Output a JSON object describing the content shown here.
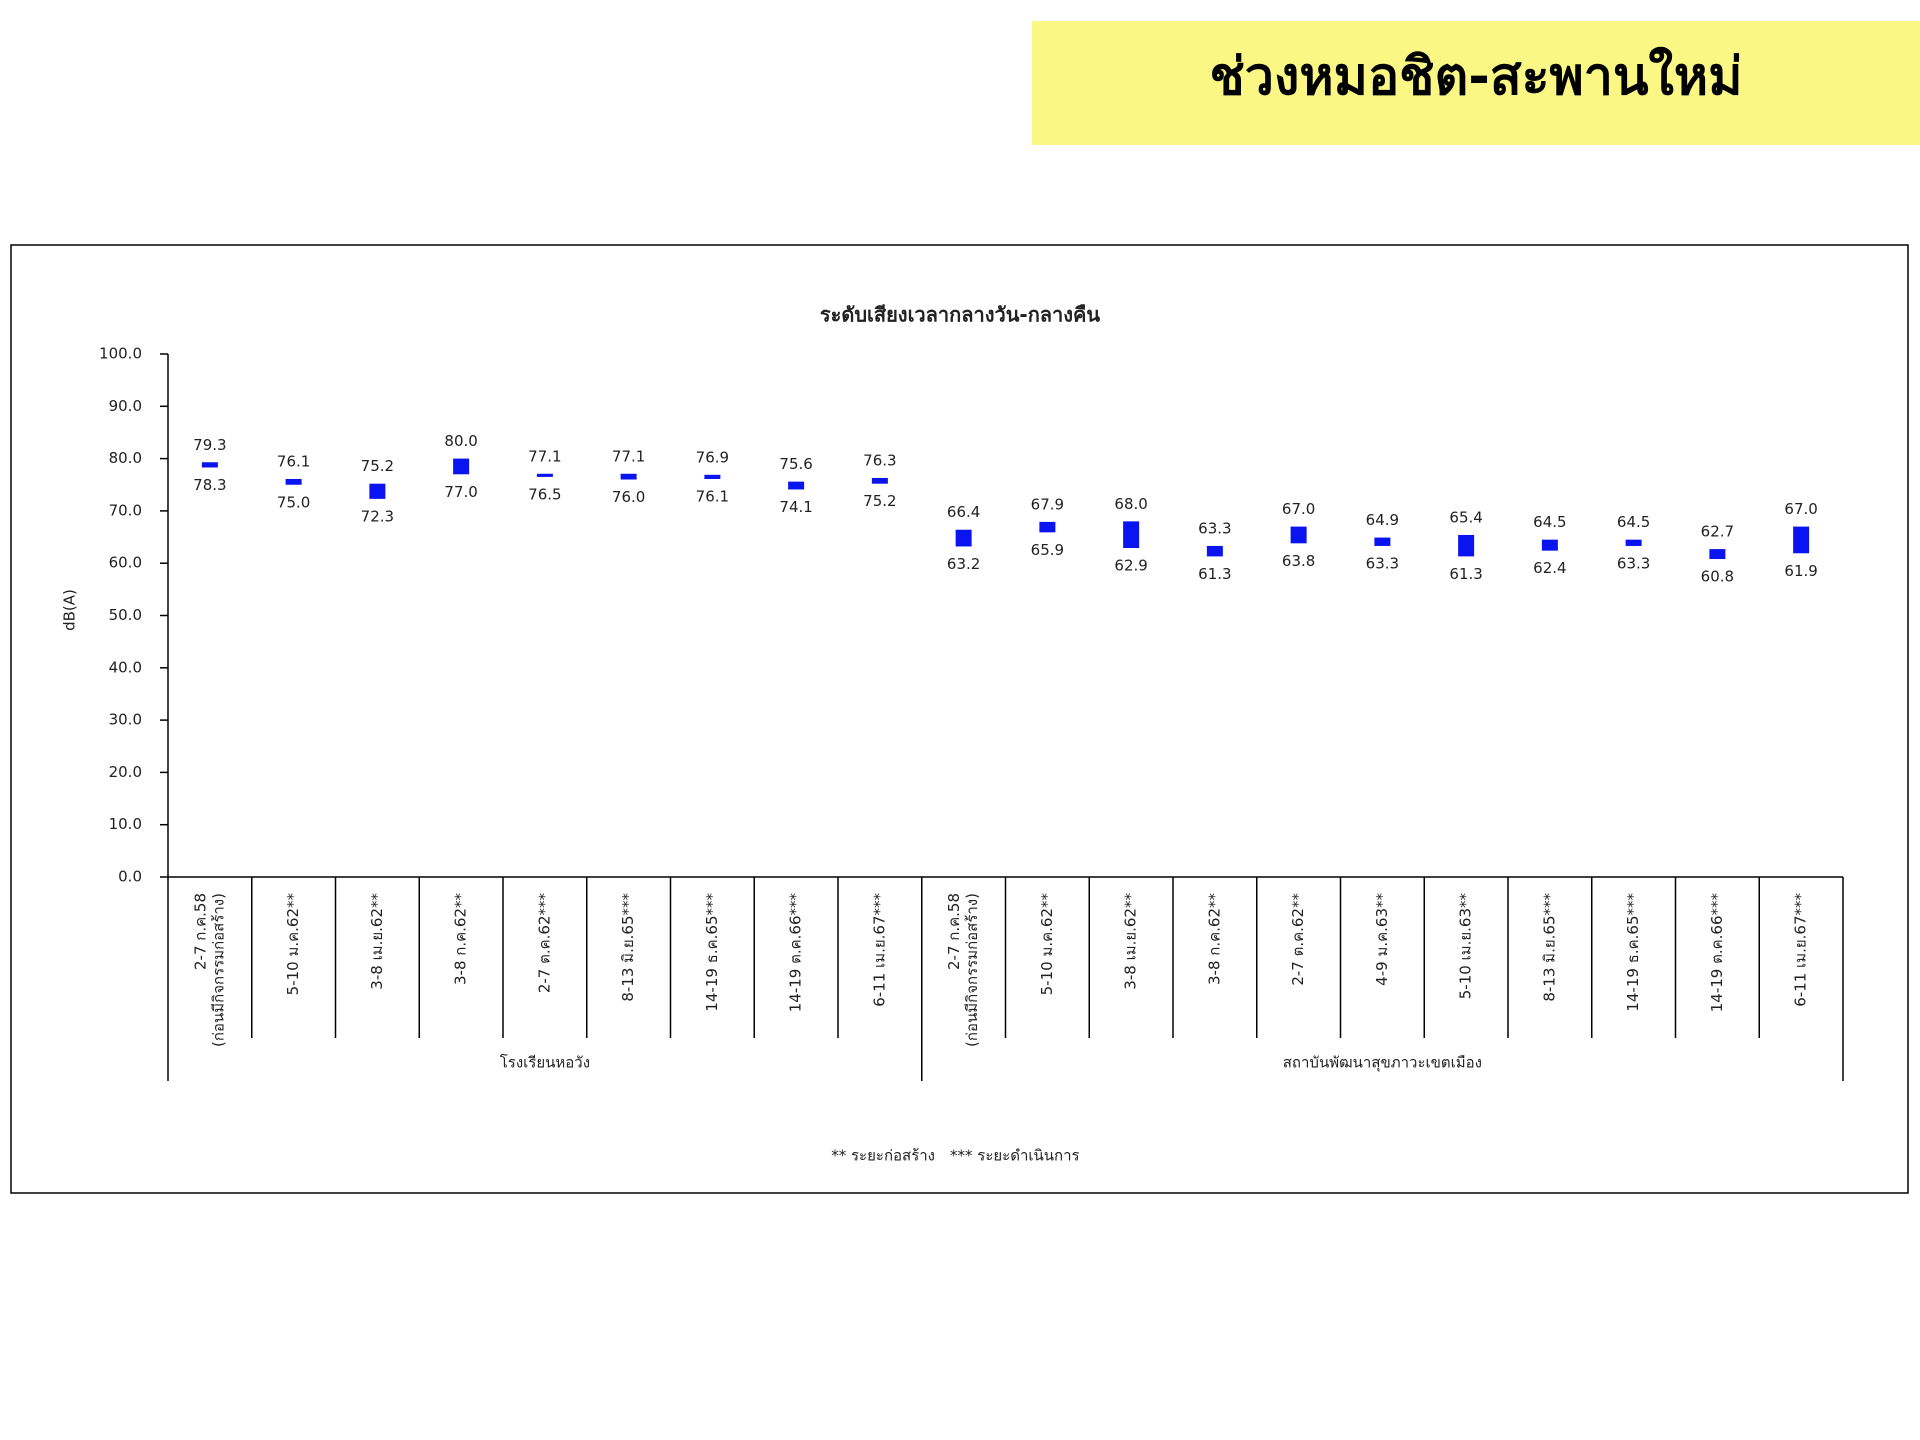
{
  "header": {
    "title": "ช่วงหมอชิต-สะพานใหม่"
  },
  "chart_data": {
    "type": "floating-bar",
    "title": "ระดับเสียงเวลากลางวัน-กลางคืน",
    "y_label": "dB(A)",
    "color": "#0a14f0",
    "ylim": [
      0,
      100
    ],
    "yticks": [
      {
        "value": 0,
        "label": "0.0"
      },
      {
        "value": 10,
        "label": "10.0"
      },
      {
        "value": 20,
        "label": "20.0"
      },
      {
        "value": 30,
        "label": "30.0"
      },
      {
        "value": 40,
        "label": "40.0"
      },
      {
        "value": 50,
        "label": "50.0"
      },
      {
        "value": 60,
        "label": "60.0"
      },
      {
        "value": 70,
        "label": "70.0"
      },
      {
        "value": 80,
        "label": "80.0"
      },
      {
        "value": 90,
        "label": "90.0"
      },
      {
        "value": 100,
        "label": "100.0"
      }
    ],
    "groups": [
      {
        "name": "โรงเรียนหอวัง",
        "categories": [
          [
            "2-7 ก.ค.58",
            "(ก่อนมีกิจกรรมก่อสร้าง)"
          ],
          [
            "5-10 ม.ค.62**"
          ],
          [
            "3-8 เม.ย.62**"
          ],
          [
            "3-8 ก.ค.62**"
          ],
          [
            "2-7 ต.ค.62***"
          ],
          [
            "8-13 มิ.ย.65***"
          ],
          [
            "14-19 ธ.ค.65***"
          ],
          [
            "14-19 ต.ค.66***"
          ],
          [
            "6-11 เม.ย.67***"
          ]
        ],
        "series": [
          {
            "values": [
              79.3,
              76.1,
              75.2,
              80.0,
              77.1,
              77.1,
              76.9,
              75.6,
              76.3
            ],
            "value_labels": [
              "79.3",
              "76.1",
              "75.2",
              "80.0",
              "77.1",
              "77.1",
              "76.9",
              "75.6",
              "76.3"
            ]
          },
          {
            "values": [
              78.3,
              75.0,
              72.3,
              77.0,
              76.5,
              76.0,
              76.1,
              74.1,
              75.2
            ],
            "value_labels": [
              "78.3",
              "75.0",
              "72.3",
              "77.0",
              "76.5",
              "76.0",
              "76.1",
              "74.1",
              "75.2"
            ]
          }
        ]
      },
      {
        "name": "สถาบันพัฒนาสุขภาวะเขตเมือง",
        "categories": [
          [
            "2-7 ก.ค.58",
            "(ก่อนมีกิจกรรมก่อสร้าง)"
          ],
          [
            "5-10 ม.ค.62**"
          ],
          [
            "3-8 เม.ย.62**"
          ],
          [
            "3-8 ก.ค.62**"
          ],
          [
            "2-7 ต.ค.62**"
          ],
          [
            "4-9 ม.ค.63**"
          ],
          [
            "5-10 เม.ย.63**"
          ],
          [
            "8-13 มิ.ย.65***"
          ],
          [
            "14-19 ธ.ค.65***"
          ],
          [
            "14-19 ต.ค.66***"
          ],
          [
            "6-11 เม.ย.67***"
          ]
        ],
        "series": [
          {
            "values": [
              66.4,
              67.9,
              68.0,
              63.3,
              67.0,
              64.9,
              65.4,
              64.5,
              64.5,
              62.7,
              67.0
            ],
            "value_labels": [
              "66.4",
              "67.9",
              "68.0",
              "63.3",
              "67.0",
              "64.9",
              "65.4",
              "64.5",
              "64.5",
              "62.7",
              "67.0"
            ]
          },
          {
            "values": [
              63.2,
              65.9,
              62.9,
              61.3,
              63.8,
              63.3,
              61.3,
              62.4,
              63.3,
              60.8,
              61.9
            ],
            "value_labels": [
              "63.2",
              "65.9",
              "62.9",
              "61.3",
              "63.8",
              "63.3",
              "61.3",
              "62.4",
              "63.3",
              "60.8",
              "61.9"
            ]
          }
        ]
      }
    ],
    "notes": [
      "** ระยะก่อสร้าง",
      "*** ระยะดำเนินการ"
    ]
  }
}
